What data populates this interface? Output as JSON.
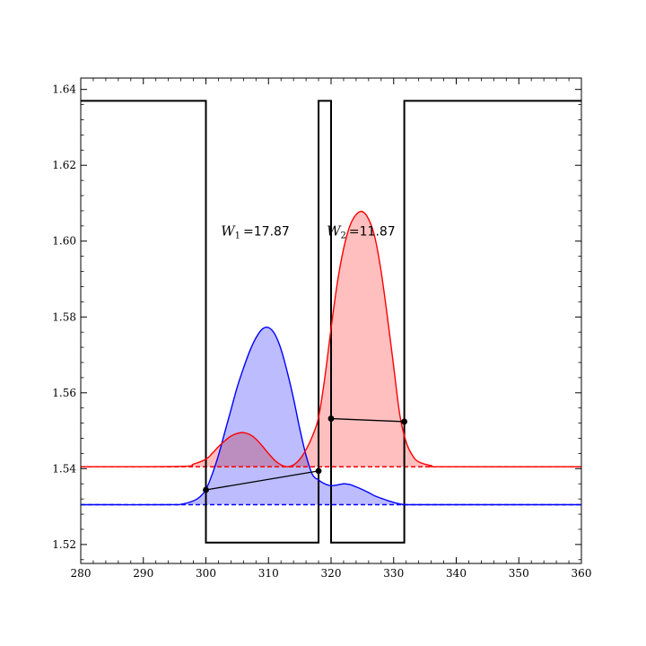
{
  "chart_data": {
    "type": "line",
    "xlim": [
      280,
      360
    ],
    "ylim": [
      1.515,
      1.643
    ],
    "x_major_ticks": [
      280,
      290,
      300,
      310,
      320,
      330,
      340,
      350,
      360
    ],
    "y_major_ticks": [
      1.52,
      1.54,
      1.56,
      1.58,
      1.6,
      1.62,
      1.64
    ],
    "x_tick_labels": [
      "280",
      "290",
      "300",
      "310",
      "320",
      "330",
      "340",
      "350",
      "360"
    ],
    "y_tick_labels": [
      "1.52",
      "1.54",
      "1.56",
      "1.58",
      "1.60",
      "1.62",
      "1.64"
    ],
    "grid": false,
    "colors": {
      "profile": "#000000",
      "mode1": "#0000ff",
      "mode2": "#ff0000",
      "fill1": "#b8b8ff",
      "fill2": "#ffbcbc"
    },
    "index_profile": {
      "x": [
        280,
        300,
        300,
        318,
        318,
        320,
        320,
        331.7,
        331.7,
        360
      ],
      "y": [
        1.637,
        1.637,
        1.5205,
        1.5205,
        1.637,
        1.637,
        1.5205,
        1.5205,
        1.637,
        1.637
      ]
    },
    "series": [
      {
        "color": "blue",
        "baseline": 1.5305,
        "x": [
          280,
          294,
          296,
          298,
          299,
          300,
          301,
          302,
          303,
          304,
          305,
          306,
          307,
          308,
          309,
          310,
          311,
          312,
          313,
          314,
          315,
          316,
          317,
          318,
          319,
          320,
          321,
          322,
          323,
          324,
          325,
          326,
          327,
          328,
          329,
          330,
          331,
          332,
          334,
          360
        ],
        "y": [
          1.5305,
          1.5305,
          1.5306,
          1.5315,
          1.5325,
          1.5345,
          1.5385,
          1.5435,
          1.5495,
          1.5555,
          1.5615,
          1.5665,
          1.571,
          1.5745,
          1.5768,
          1.5772,
          1.5755,
          1.5715,
          1.5655,
          1.5585,
          1.5505,
          1.5435,
          1.5385,
          1.537,
          1.536,
          1.5355,
          1.5357,
          1.536,
          1.5358,
          1.5352,
          1.5345,
          1.5337,
          1.5328,
          1.5322,
          1.5316,
          1.5311,
          1.5307,
          1.5305,
          1.5305,
          1.5305
        ]
      },
      {
        "color": "red",
        "baseline": 1.5405,
        "x": [
          280,
          296,
          298,
          300,
          301,
          302,
          303,
          304,
          305,
          306,
          307,
          308,
          309,
          310,
          311,
          312,
          313,
          314,
          315,
          316,
          317,
          318,
          319,
          320,
          321,
          322,
          323,
          324,
          325,
          326,
          327,
          328,
          329,
          330,
          331,
          332,
          333,
          334,
          336,
          338,
          360
        ],
        "y": [
          1.5405,
          1.5406,
          1.5412,
          1.5425,
          1.544,
          1.5458,
          1.5473,
          1.5486,
          1.5493,
          1.5495,
          1.549,
          1.5478,
          1.546,
          1.544,
          1.5422,
          1.541,
          1.5405,
          1.541,
          1.5425,
          1.545,
          1.5485,
          1.5535,
          1.564,
          1.577,
          1.589,
          1.598,
          1.604,
          1.607,
          1.6078,
          1.6058,
          1.601,
          1.592,
          1.58,
          1.567,
          1.554,
          1.547,
          1.5435,
          1.5418,
          1.5408,
          1.5405,
          1.5405
        ]
      }
    ],
    "markers": {
      "blue": [
        [
          300,
          1.5344
        ],
        [
          318,
          1.5394
        ]
      ],
      "red": [
        [
          320,
          1.5532
        ],
        [
          331.7,
          1.5524
        ]
      ]
    },
    "annotations": {
      "w1": {
        "var": "W",
        "sub": "1",
        "value": "=17.87",
        "x": 302.4,
        "y": 1.6015
      },
      "w2": {
        "var": "W",
        "sub": "2",
        "value": "=11.87",
        "x": 319.3,
        "y": 1.6015
      }
    }
  }
}
